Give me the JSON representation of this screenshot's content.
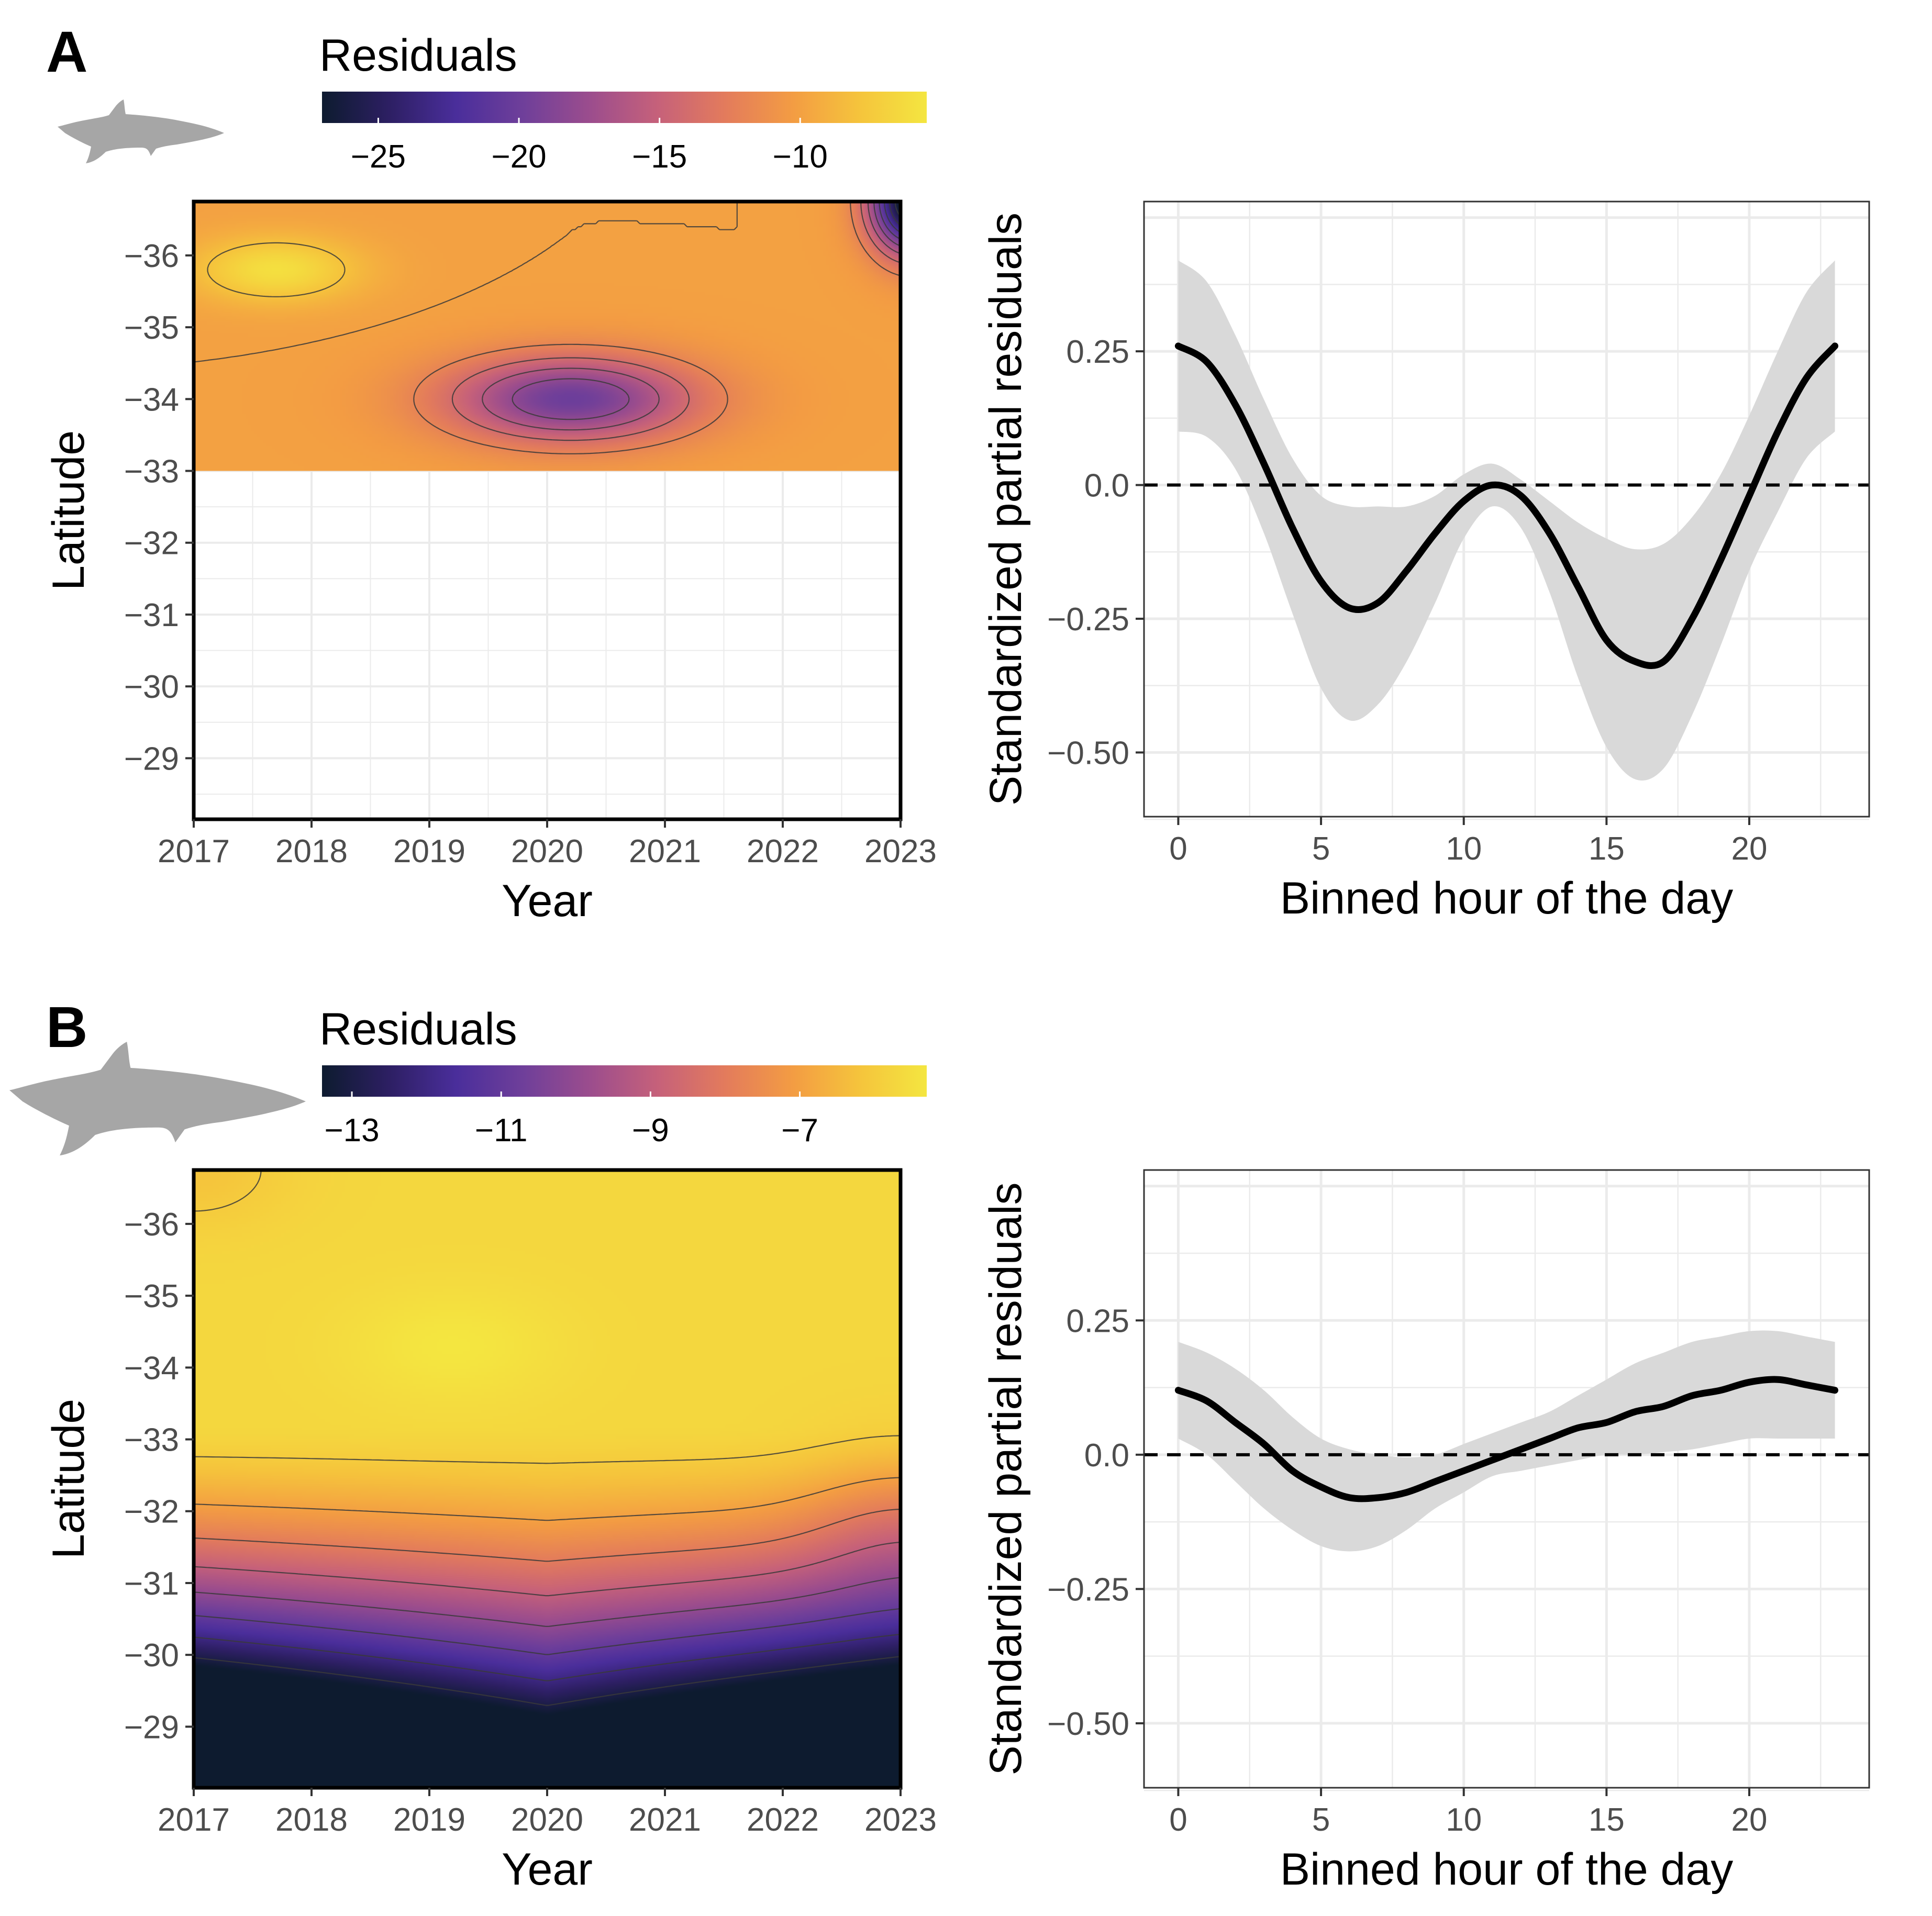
{
  "chart_data": [
    {
      "panel": "A",
      "type": "heatmap",
      "legend": {
        "title": "Residuals",
        "ticks": [
          "−25",
          "−20",
          "−15",
          "−10"
        ],
        "range": [
          -27,
          -5.5
        ]
      },
      "x_axis": {
        "label": "Year",
        "range": [
          2017,
          2023
        ],
        "ticks": [
          2017,
          2018,
          2019,
          2020,
          2021,
          2022,
          2023
        ],
        "tick_labels": [
          "2017",
          "2018",
          "2019",
          "2020",
          "2021",
          "2022",
          "2023"
        ]
      },
      "y_axis": {
        "label": "Latitude",
        "range": [
          -28.15,
          -36.75
        ],
        "ticks": [
          -36,
          -35,
          -34,
          -33,
          -32,
          -31,
          -30,
          -29
        ],
        "tick_labels": [
          "−36",
          "−35",
          "−34",
          "−33",
          "−32",
          "−31",
          "−30",
          "−29"
        ]
      },
      "data_extent": {
        "lat_from": -36.75,
        "lat_to": -33.0
      },
      "field": {
        "base": -10,
        "components": [
          {
            "year": 2017.7,
            "lat": -35.8,
            "amp": 4,
            "sx": 0.7,
            "sy": 0.45
          },
          {
            "year": 2020.2,
            "lat": -34.0,
            "amp": -10,
            "sx": 1.05,
            "sy": 0.6
          },
          {
            "year": 2023.1,
            "lat": -36.75,
            "amp": -19,
            "sx": 0.35,
            "sy": 0.7
          }
        ],
        "contour_levels": [
          -26,
          -24,
          -22,
          -20,
          -18,
          -16,
          -14,
          -12,
          -10,
          -8
        ]
      }
    },
    {
      "panel": "A-right",
      "type": "line",
      "x_axis": {
        "label": "Binned hour of the day",
        "range": [
          -1.2,
          24.2
        ],
        "ticks": [
          0,
          5,
          10,
          15,
          20
        ],
        "tick_labels": [
          "0",
          "5",
          "10",
          "15",
          "20"
        ]
      },
      "y_axis": {
        "label": "Standardized partial residuals",
        "range": [
          -0.62,
          0.53
        ],
        "ticks": [
          -0.5,
          -0.25,
          0.0,
          0.25
        ],
        "tick_labels": [
          "−0.50",
          "−0.25",
          "0.0",
          "0.25"
        ]
      },
      "reference_line": 0,
      "series": [
        {
          "name": "smooth",
          "x": [
            0,
            1,
            2,
            3,
            4,
            5,
            6,
            7,
            8,
            9,
            10,
            11,
            12,
            13,
            14,
            15,
            16,
            17,
            18,
            19,
            20,
            21,
            22,
            23
          ],
          "y": [
            0.26,
            0.23,
            0.15,
            0.04,
            -0.08,
            -0.18,
            -0.23,
            -0.22,
            -0.16,
            -0.09,
            -0.03,
            0.0,
            -0.02,
            -0.09,
            -0.19,
            -0.29,
            -0.33,
            -0.33,
            -0.25,
            -0.14,
            -0.02,
            0.1,
            0.2,
            0.26
          ],
          "lower": [
            0.1,
            0.09,
            0.03,
            -0.09,
            -0.24,
            -0.38,
            -0.44,
            -0.41,
            -0.33,
            -0.22,
            -0.1,
            -0.04,
            -0.08,
            -0.2,
            -0.36,
            -0.49,
            -0.55,
            -0.53,
            -0.43,
            -0.3,
            -0.16,
            -0.05,
            0.05,
            0.1
          ],
          "upper": [
            0.42,
            0.38,
            0.28,
            0.16,
            0.05,
            -0.02,
            -0.04,
            -0.04,
            -0.04,
            -0.02,
            0.02,
            0.04,
            0.01,
            -0.03,
            -0.07,
            -0.1,
            -0.12,
            -0.11,
            -0.06,
            0.02,
            0.13,
            0.25,
            0.36,
            0.42
          ]
        }
      ]
    },
    {
      "panel": "B",
      "type": "heatmap",
      "legend": {
        "title": "Residuals",
        "ticks": [
          "−13",
          "−11",
          "−9",
          "−7"
        ],
        "range": [
          -13.4,
          -5.3
        ]
      },
      "x_axis": {
        "label": "Year",
        "range": [
          2017,
          2023
        ],
        "ticks": [
          2017,
          2018,
          2019,
          2020,
          2021,
          2022,
          2023
        ],
        "tick_labels": [
          "2017",
          "2018",
          "2019",
          "2020",
          "2021",
          "2022",
          "2023"
        ]
      },
      "y_axis": {
        "label": "Latitude",
        "range": [
          -28.15,
          -36.75
        ],
        "ticks": [
          -36,
          -35,
          -34,
          -33,
          -32,
          -31,
          -30,
          -29
        ],
        "tick_labels": [
          "−36",
          "−35",
          "−34",
          "−33",
          "−32",
          "−31",
          "−30",
          "−29"
        ]
      },
      "data_extent": {
        "lat_from": -36.75,
        "lat_to": -28.15
      },
      "field": {
        "base": -5.7,
        "components": [
          {
            "year": 2019.2,
            "lat": -34.3,
            "amp": 0.4,
            "sx": 0.9,
            "sy": 0.8
          },
          {
            "year": 2023.0,
            "lat": -31.8,
            "amp": -0.9,
            "sx": 0.8,
            "sy": 1.1
          },
          {
            "year": 2017.0,
            "lat": -36.75,
            "amp": -0.5,
            "sx": 0.8,
            "sy": 0.8
          }
        ],
        "gradient": {
          "lat_start": -33.2,
          "scale": 1.5,
          "power": 1.6,
          "year_edge_coef": 0.35
        },
        "contour_levels": [
          -13,
          -12,
          -11,
          -10,
          -9,
          -8,
          -7,
          -6
        ]
      }
    },
    {
      "panel": "B-right",
      "type": "line",
      "x_axis": {
        "label": "Binned hour of the day",
        "range": [
          -1.2,
          24.2
        ],
        "ticks": [
          0,
          5,
          10,
          15,
          20
        ],
        "tick_labels": [
          "0",
          "5",
          "10",
          "15",
          "20"
        ]
      },
      "y_axis": {
        "label": "Standardized partial residuals",
        "range": [
          -0.62,
          0.53
        ],
        "ticks": [
          -0.5,
          -0.25,
          0.0,
          0.25
        ],
        "tick_labels": [
          "−0.50",
          "−0.25",
          "0.0",
          "0.25"
        ]
      },
      "reference_line": 0,
      "series": [
        {
          "name": "smooth",
          "x": [
            0,
            1,
            2,
            3,
            4,
            5,
            6,
            7,
            8,
            9,
            10,
            11,
            12,
            13,
            14,
            15,
            16,
            17,
            18,
            19,
            20,
            21,
            22,
            23
          ],
          "y": [
            0.12,
            0.1,
            0.06,
            0.02,
            -0.03,
            -0.06,
            -0.08,
            -0.08,
            -0.07,
            -0.05,
            -0.03,
            -0.01,
            0.01,
            0.03,
            0.05,
            0.06,
            0.08,
            0.09,
            0.11,
            0.12,
            0.135,
            0.14,
            0.13,
            0.12
          ],
          "lower": [
            0.03,
            0.0,
            -0.05,
            -0.1,
            -0.14,
            -0.17,
            -0.18,
            -0.17,
            -0.14,
            -0.1,
            -0.07,
            -0.04,
            -0.03,
            -0.02,
            -0.01,
            0.0,
            0.0,
            0.005,
            0.01,
            0.02,
            0.03,
            0.03,
            0.03,
            0.03
          ],
          "upper": [
            0.21,
            0.19,
            0.16,
            0.12,
            0.07,
            0.03,
            0.01,
            0.0,
            -0.005,
            0.0,
            0.02,
            0.04,
            0.06,
            0.08,
            0.11,
            0.14,
            0.17,
            0.19,
            0.21,
            0.22,
            0.23,
            0.23,
            0.22,
            0.21
          ]
        }
      ]
    }
  ],
  "panel_labels": {
    "a": "A",
    "b": "B"
  },
  "shark_icons": [
    "shark-silhouette-icon",
    "shark-silhouette-icon"
  ],
  "colors": {
    "viridis_like": [
      "#0d1b2f",
      "#2d1f63",
      "#4a2e9b",
      "#6f3f9a",
      "#9c4d8d",
      "#c6617a",
      "#e37b5c",
      "#f39c43",
      "#f5c43c",
      "#f4e640"
    ],
    "shark_grey": "#a6a6a6",
    "ribbon": "#d9d9d9",
    "grid": "#ebebeb"
  }
}
